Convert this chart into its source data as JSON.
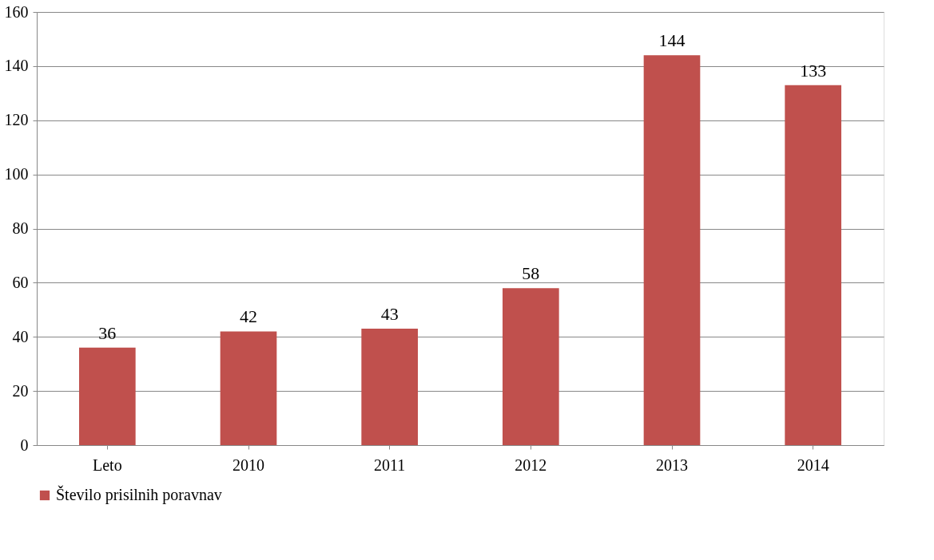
{
  "chart_data": {
    "type": "bar",
    "categories": [
      "Leto",
      "2010",
      "2011",
      "2012",
      "2013",
      "2014"
    ],
    "series": [
      {
        "name": "Število prisilnih poravnav",
        "color": "#c0504d",
        "values": [
          36,
          42,
          43,
          58,
          144,
          133
        ]
      }
    ],
    "ylim": [
      0,
      160
    ],
    "yticks": [
      0,
      20,
      40,
      60,
      80,
      100,
      120,
      140,
      160
    ],
    "grid": "y",
    "legend": "bottom",
    "data_labels": true
  }
}
